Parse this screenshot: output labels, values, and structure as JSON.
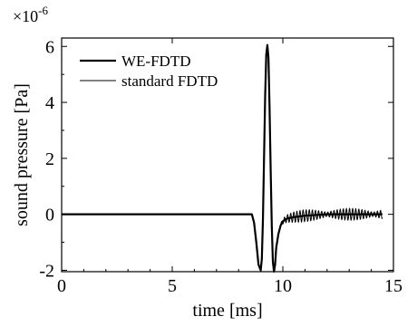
{
  "chart_data": {
    "type": "line",
    "xlabel": "time [ms]",
    "ylabel": "sound pressure [Pa]",
    "y_multiplier_base": "×10",
    "y_multiplier_exponent": "-6",
    "xlim": [
      0,
      15
    ],
    "ylim": [
      -2.05,
      6.3
    ],
    "x_ticks": [
      0,
      5,
      10,
      15
    ],
    "x_tick_labels": [
      "0",
      "5",
      "10",
      "15"
    ],
    "y_ticks": [
      -2,
      0,
      2,
      4,
      6
    ],
    "y_tick_labels": [
      "-2",
      "0",
      "2",
      "4",
      "6"
    ],
    "grid": false,
    "legend_position": "top-left",
    "series": [
      {
        "name": "WE-FDTD",
        "style": "thick",
        "x": [
          0,
          8.6,
          8.7,
          8.8,
          8.9,
          9.0,
          9.05,
          9.1,
          9.15,
          9.2,
          9.25,
          9.3,
          9.35,
          9.4,
          9.45,
          9.5,
          9.55,
          9.6,
          9.65,
          9.7,
          9.8,
          9.9,
          10.0,
          10.2,
          10.5,
          11.0,
          12.0,
          13.0,
          14.5
        ],
        "y": [
          0,
          0,
          -0.3,
          -1.0,
          -1.8,
          -2.0,
          -1.6,
          -0.2,
          2.0,
          4.2,
          5.7,
          6.05,
          5.6,
          3.8,
          1.6,
          -0.4,
          -1.7,
          -2.05,
          -1.8,
          -1.2,
          -0.7,
          -0.4,
          -0.25,
          -0.15,
          -0.1,
          -0.05,
          0,
          0,
          0
        ]
      },
      {
        "name": "standard FDTD",
        "style": "thin",
        "x": [
          0,
          8.6,
          8.7,
          8.8,
          8.9,
          9.0,
          9.05,
          9.1,
          9.15,
          9.2,
          9.25,
          9.3,
          9.35,
          9.4,
          9.45,
          9.5,
          9.55,
          9.6,
          9.65,
          9.7,
          9.8,
          9.9,
          10.0,
          10.2,
          10.5,
          11.0,
          12.0,
          13.0,
          14.5
        ],
        "y": [
          0,
          0,
          -0.3,
          -1.0,
          -1.8,
          -2.0,
          -1.6,
          -0.2,
          2.0,
          4.2,
          5.7,
          6.05,
          5.6,
          3.8,
          1.6,
          -0.4,
          -1.7,
          -2.05,
          -1.8,
          -1.2,
          -0.7,
          -0.4,
          -0.25,
          -0.15,
          -0.1,
          -0.05,
          0,
          0,
          0
        ],
        "ripple_start": 9.9,
        "ripple_end": 14.5,
        "ripple_period_ms": 0.14,
        "ripple_amplitude": 0.22
      }
    ]
  }
}
